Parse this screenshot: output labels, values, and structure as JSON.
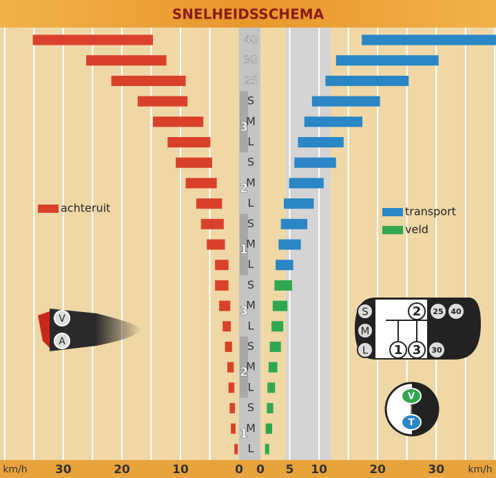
{
  "title": "SNELHEIDSSCHEMA",
  "chart_data": {
    "type": "bar",
    "categories": [
      "40",
      "30",
      "25",
      "S",
      "M",
      "L",
      "S",
      "M",
      "L",
      "S",
      "M",
      "L",
      "S",
      "M",
      "L",
      "S",
      "M",
      "L",
      "S",
      "M",
      "L"
    ],
    "gears": [
      null,
      null,
      null,
      null,
      "3",
      null,
      null,
      "2",
      null,
      null,
      "1",
      null,
      null,
      "3",
      null,
      null,
      "2",
      null,
      null,
      "1",
      null
    ],
    "series": [
      {
        "name": "achteruit",
        "color": "#d9412b",
        "side": "left",
        "values": [
          [
            14.7,
            35.2
          ],
          [
            12.4,
            26.1
          ],
          [
            9.1,
            21.8
          ],
          [
            8.8,
            17.3
          ],
          [
            6.1,
            14.7
          ],
          [
            4.9,
            12.2
          ],
          [
            4.6,
            10.8
          ],
          [
            3.8,
            9.1
          ],
          [
            2.9,
            7.3
          ],
          [
            2.6,
            6.5
          ],
          [
            2.4,
            5.5
          ],
          [
            1.8,
            4.1
          ],
          [
            1.8,
            4.1
          ],
          [
            1.5,
            3.4
          ],
          [
            1.4,
            2.8
          ],
          [
            1.2,
            2.4
          ],
          [
            0.9,
            2.0
          ],
          [
            0.8,
            1.8
          ],
          [
            0.7,
            1.6
          ],
          [
            0.6,
            1.4
          ],
          [
            0.2,
            0.8
          ]
        ]
      },
      {
        "name": "transport",
        "color": "#2a86c4",
        "side": "right",
        "values": [
          [
            17.3,
            40.2
          ],
          [
            12.9,
            30.4
          ],
          [
            11.1,
            25.3
          ],
          [
            8.8,
            20.4
          ],
          [
            7.5,
            17.4
          ],
          [
            6.4,
            14.2
          ],
          [
            5.8,
            12.9
          ],
          [
            4.9,
            10.8
          ],
          [
            4.0,
            9.1
          ],
          [
            3.5,
            8.0
          ],
          [
            3.1,
            6.9
          ],
          [
            2.6,
            5.6
          ],
          null,
          null,
          null,
          null,
          null,
          null,
          null,
          null,
          null
        ]
      },
      {
        "name": "veld",
        "color": "#2fa84f",
        "side": "right",
        "values": [
          null,
          null,
          null,
          null,
          null,
          null,
          null,
          null,
          null,
          null,
          null,
          null,
          [
            2.4,
            5.4
          ],
          [
            2.1,
            4.6
          ],
          [
            1.9,
            3.9
          ],
          [
            1.6,
            3.5
          ],
          [
            1.4,
            2.9
          ],
          [
            1.2,
            2.5
          ],
          [
            1.1,
            2.2
          ],
          [
            0.9,
            2.0
          ],
          [
            0.8,
            1.5
          ]
        ]
      }
    ],
    "xlim_left": [
      0,
      40.8
    ],
    "xticks_left": [
      0,
      10,
      20,
      30
    ],
    "xlim": [
      0,
      40.2
    ],
    "xticks": [
      0,
      5,
      10,
      20,
      30
    ],
    "x_label": "km/h",
    "grid_step": 5,
    "highlight": [
      4.4,
      12
    ]
  },
  "levers": {
    "direction": [
      "V",
      "A"
    ],
    "ranges": [
      "S",
      "M",
      "L"
    ],
    "gears": [
      "2",
      "25",
      "40",
      "1",
      "3",
      "30"
    ],
    "mode": [
      "V",
      "T"
    ]
  }
}
